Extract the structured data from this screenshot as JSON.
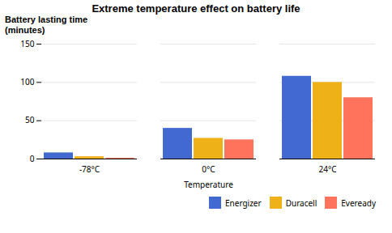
{
  "chart_data": {
    "type": "bar",
    "title": "Extreme temperature effect on battery life",
    "xlabel": "Temperature",
    "ylabel": [
      "Battery lasting time",
      "(minutes)"
    ],
    "categories": [
      "-78°C",
      "0°C",
      "24°C"
    ],
    "series": [
      {
        "name": "Energizer",
        "values": [
          8,
          40,
          108
        ]
      },
      {
        "name": "Duracell",
        "values": [
          3,
          27,
          100
        ]
      },
      {
        "name": "Eveready",
        "values": [
          1,
          25,
          80
        ]
      }
    ],
    "ylim": [
      0,
      150
    ],
    "yticks": [
      0,
      50,
      100,
      150
    ],
    "grid": true,
    "legend": "lower right"
  }
}
